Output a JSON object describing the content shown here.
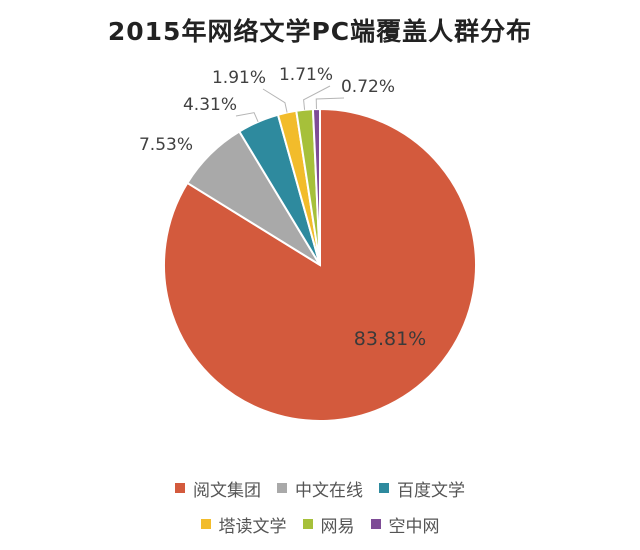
{
  "chart_data": {
    "type": "pie",
    "title": "2015年网络文学PC端覆盖人群分布",
    "categories": [
      "阅文集团",
      "中文在线",
      "百度文学",
      "塔读文学",
      "网易",
      "空中网"
    ],
    "values": [
      83.81,
      7.53,
      4.31,
      1.91,
      1.71,
      0.72
    ],
    "value_labels": [
      "83.81%",
      "7.53%",
      "4.31%",
      "1.91%",
      "1.71%",
      "0.72%"
    ],
    "colors": [
      "#D35A3D",
      "#A9A9A9",
      "#2E8A9E",
      "#F2BC2B",
      "#A6C03A",
      "#7E4C96"
    ],
    "legend_position": "bottom"
  }
}
